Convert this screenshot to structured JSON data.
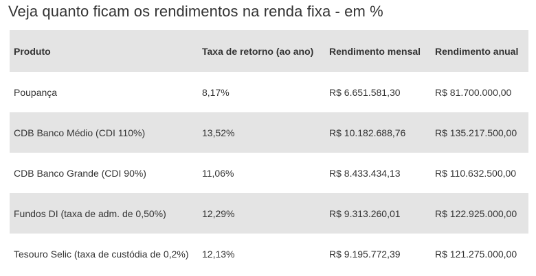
{
  "title": "Veja quanto ficam os rendimentos na renda fixa - em %",
  "table": {
    "headers": [
      "Produto",
      "Taxa de retorno (ao ano)",
      "Rendimento mensal",
      "Rendimento anual"
    ],
    "rows": [
      [
        "Poupança",
        "8,17%",
        "R$ 6.651.581,30",
        "R$ 81.700.000,00"
      ],
      [
        "CDB Banco Médio (CDI 110%)",
        "13,52%",
        "R$ 10.182.688,76",
        "R$ 135.217.500,00"
      ],
      [
        "CDB Banco Grande (CDI 90%)",
        "11,06%",
        "R$ 8.433.434,13",
        "R$ 110.632.500,00"
      ],
      [
        "Fundos DI (taxa de adm. de 0,50%)",
        "12,29%",
        "R$ 9.313.260,01",
        "R$ 122.925.000,00"
      ],
      [
        "Tesouro Selic (taxa de custódia de 0,2%)",
        "12,13%",
        "R$ 9.195.772,39",
        "R$ 121.275.000,00"
      ]
    ]
  }
}
